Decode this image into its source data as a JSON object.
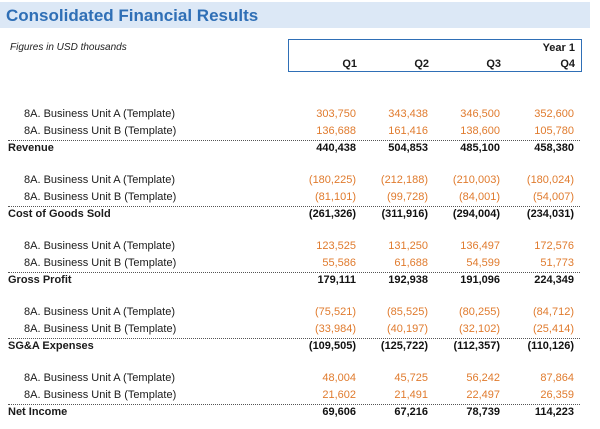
{
  "title": "Consolidated Financial Results",
  "note": "Figures in USD thousands",
  "header": {
    "year": "Year 1",
    "quarters": [
      "Q1",
      "Q2",
      "Q3",
      "Q4"
    ]
  },
  "sections": [
    {
      "items": [
        {
          "label": "8A. Business Unit A (Template)",
          "values": [
            "303,750",
            "343,438",
            "346,500",
            "352,600"
          ]
        },
        {
          "label": "8A. Business Unit B (Template)",
          "values": [
            "136,688",
            "161,416",
            "138,600",
            "105,780"
          ]
        }
      ],
      "total": {
        "label": "Revenue",
        "values": [
          "440,438",
          "504,853",
          "485,100",
          "458,380"
        ]
      }
    },
    {
      "items": [
        {
          "label": "8A. Business Unit A (Template)",
          "values": [
            "(180,225)",
            "(212,188)",
            "(210,003)",
            "(180,024)"
          ]
        },
        {
          "label": "8A. Business Unit B (Template)",
          "values": [
            "(81,101)",
            "(99,728)",
            "(84,001)",
            "(54,007)"
          ]
        }
      ],
      "total": {
        "label": "Cost of Goods Sold",
        "values": [
          "(261,326)",
          "(311,916)",
          "(294,004)",
          "(234,031)"
        ]
      }
    },
    {
      "items": [
        {
          "label": "8A. Business Unit A (Template)",
          "values": [
            "123,525",
            "131,250",
            "136,497",
            "172,576"
          ]
        },
        {
          "label": "8A. Business Unit B (Template)",
          "values": [
            "55,586",
            "61,688",
            "54,599",
            "51,773"
          ]
        }
      ],
      "total": {
        "label": "Gross Profit",
        "values": [
          "179,111",
          "192,938",
          "191,096",
          "224,349"
        ]
      }
    },
    {
      "items": [
        {
          "label": "8A. Business Unit A (Template)",
          "values": [
            "(75,521)",
            "(85,525)",
            "(80,255)",
            "(84,712)"
          ]
        },
        {
          "label": "8A. Business Unit B (Template)",
          "values": [
            "(33,984)",
            "(40,197)",
            "(32,102)",
            "(25,414)"
          ]
        }
      ],
      "total": {
        "label": "SG&A Expenses",
        "values": [
          "(109,505)",
          "(125,722)",
          "(112,357)",
          "(110,126)"
        ]
      }
    },
    {
      "items": [
        {
          "label": "8A. Business Unit A (Template)",
          "values": [
            "48,004",
            "45,725",
            "56,242",
            "87,864"
          ]
        },
        {
          "label": "8A. Business Unit B (Template)",
          "values": [
            "21,602",
            "21,491",
            "22,497",
            "26,359"
          ]
        }
      ],
      "total": {
        "label": "Net Income",
        "values": [
          "69,606",
          "67,216",
          "78,739",
          "114,223"
        ]
      }
    }
  ]
}
